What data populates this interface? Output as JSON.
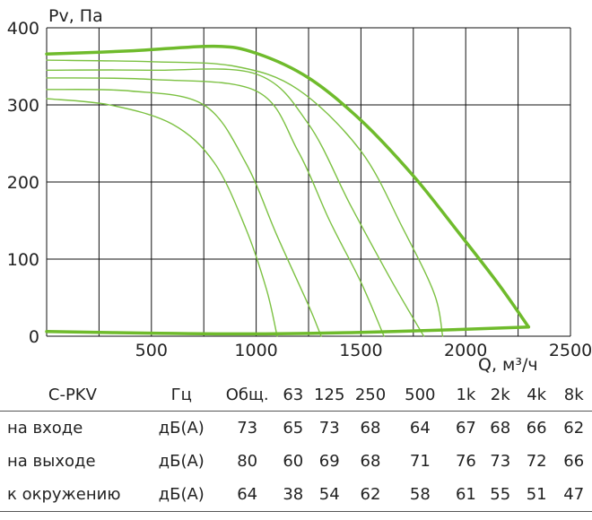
{
  "chart_data": {
    "type": "line",
    "ylabel": "Pv, Па",
    "xlabel": "Q, м³/ч",
    "xlim": [
      0,
      2500
    ],
    "ylim": [
      0,
      400
    ],
    "xticks": [
      "500",
      "1000",
      "1500",
      "2000",
      "2500"
    ],
    "yticks": [
      "0",
      "100",
      "200",
      "300",
      "400"
    ],
    "grid": true,
    "colors": {
      "thin": "#7cc142",
      "thick": "#6fbb2c",
      "grid": "#111111"
    },
    "series": [
      {
        "width": "thin",
        "points": [
          [
            0,
            308
          ],
          [
            300,
            300
          ],
          [
            600,
            275
          ],
          [
            800,
            225
          ],
          [
            950,
            140
          ],
          [
            1050,
            60
          ],
          [
            1100,
            0
          ]
        ]
      },
      {
        "width": "thin",
        "points": [
          [
            0,
            320
          ],
          [
            400,
            318
          ],
          [
            750,
            300
          ],
          [
            950,
            225
          ],
          [
            1100,
            130
          ],
          [
            1250,
            40
          ],
          [
            1310,
            0
          ]
        ]
      },
      {
        "width": "thin",
        "points": [
          [
            0,
            335
          ],
          [
            500,
            333
          ],
          [
            1000,
            318
          ],
          [
            1200,
            240
          ],
          [
            1350,
            150
          ],
          [
            1500,
            70
          ],
          [
            1610,
            0
          ]
        ]
      },
      {
        "width": "thin",
        "points": [
          [
            0,
            345
          ],
          [
            500,
            345
          ],
          [
            1000,
            340
          ],
          [
            1250,
            275
          ],
          [
            1450,
            170
          ],
          [
            1650,
            70
          ],
          [
            1800,
            0
          ]
        ]
      },
      {
        "width": "thin",
        "points": [
          [
            0,
            358
          ],
          [
            500,
            356
          ],
          [
            900,
            350
          ],
          [
            1200,
            320
          ],
          [
            1500,
            240
          ],
          [
            1700,
            140
          ],
          [
            1850,
            55
          ],
          [
            1890,
            0
          ]
        ]
      },
      {
        "width": "thick",
        "points": [
          [
            0,
            366
          ],
          [
            400,
            370
          ],
          [
            800,
            376
          ],
          [
            1000,
            367
          ],
          [
            1250,
            335
          ],
          [
            1500,
            280
          ],
          [
            1750,
            208
          ],
          [
            1950,
            140
          ],
          [
            2150,
            70
          ],
          [
            2300,
            12
          ]
        ]
      },
      {
        "width": "thick",
        "points": [
          [
            0,
            6
          ],
          [
            500,
            4
          ],
          [
            1000,
            3
          ],
          [
            1500,
            5
          ],
          [
            2000,
            9
          ],
          [
            2300,
            12
          ]
        ]
      }
    ]
  },
  "table": {
    "headers": [
      "C-PKV",
      "Гц",
      "Общ.",
      "63",
      "125",
      "250",
      "500",
      "1k",
      "2k",
      "4k",
      "8k"
    ],
    "rows": [
      {
        "label": "на входе",
        "unit": "дБ(А)",
        "values": [
          "73",
          "65",
          "73",
          "68",
          "64",
          "67",
          "68",
          "66",
          "62"
        ]
      },
      {
        "label": "на выходе",
        "unit": "дБ(А)",
        "values": [
          "80",
          "60",
          "69",
          "68",
          "71",
          "76",
          "73",
          "72",
          "66"
        ]
      },
      {
        "label": "к окружению",
        "unit": "дБ(А)",
        "values": [
          "64",
          "38",
          "54",
          "62",
          "58",
          "61",
          "55",
          "51",
          "47"
        ]
      }
    ]
  }
}
